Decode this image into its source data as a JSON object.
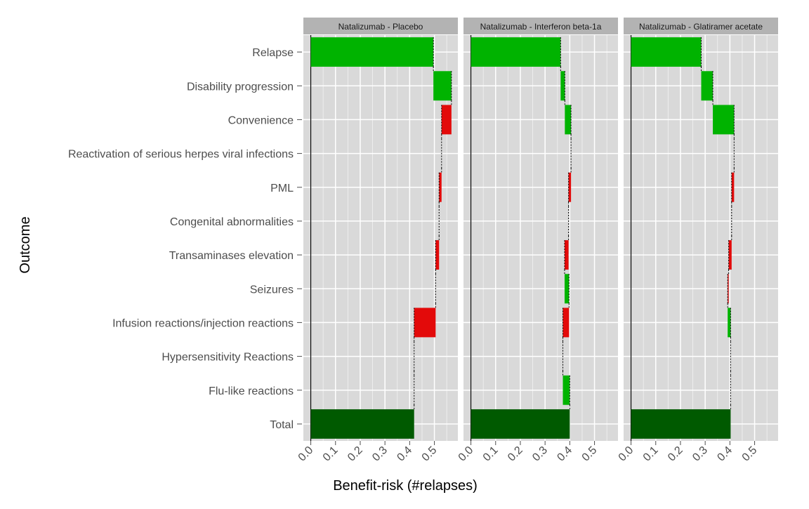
{
  "chart_data": {
    "type": "bar",
    "subtype": "waterfall",
    "xlabel": "Benefit-risk (#relapses)",
    "ylabel": "Outcome",
    "xlim": [
      -0.03,
      0.595
    ],
    "xticks": [
      "0.0",
      "0.1",
      "0.2",
      "0.3",
      "0.4",
      "0.5"
    ],
    "categories": [
      "Relapse",
      "Disability progression",
      "Convenience",
      "Reactivation of serious herpes viral infections",
      "PML",
      "Congenital abnormalities",
      "Transaminases elevation",
      "Seizures",
      "Infusion reactions/injection reactions",
      "Hypersensitivity Reactions",
      "Flu-like reactions",
      "Total"
    ],
    "colors": {
      "positive": "#00B300",
      "negative": "#E30A0A",
      "total": "#005A00",
      "panel": "#D9D9D9",
      "strip": "#B3B3B3"
    },
    "panels": [
      {
        "title": "Natalizumab - Placebo",
        "changes": [
          0.496,
          0.073,
          -0.04,
          0,
          -0.01,
          0,
          -0.014,
          0,
          -0.087,
          0,
          0
        ],
        "total": 0.418
      },
      {
        "title": "Natalizumab - Interferon beta-1a",
        "changes": [
          0.363,
          0.017,
          0.025,
          0,
          -0.01,
          0,
          -0.016,
          0.018,
          -0.025,
          0,
          0.028
        ],
        "total": 0.4
      },
      {
        "title": "Natalizumab - Glatiramer acetate",
        "changes": [
          0.284,
          0.047,
          0.086,
          0,
          -0.01,
          0,
          -0.012,
          -0.004,
          0.012,
          0,
          0
        ],
        "total": 0.403
      }
    ]
  }
}
